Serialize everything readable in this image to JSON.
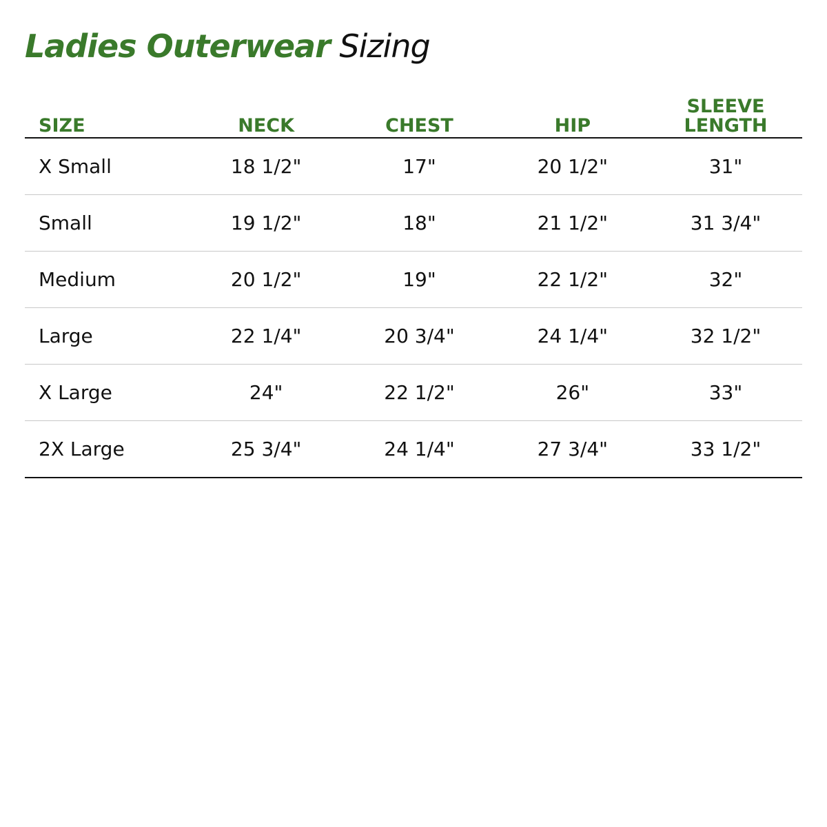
{
  "title": {
    "bold": "Ladies Outerwear",
    "rest": "Sizing"
  },
  "colors": {
    "accent": "#3a7a2b"
  },
  "headers": [
    "SIZE",
    "NECK",
    "CHEST",
    "HIP",
    "SLEEVE LENGTH"
  ],
  "rows": [
    [
      "X Small",
      "18 1/2\"",
      "17\"",
      "20 1/2\"",
      "31\""
    ],
    [
      "Small",
      "19 1/2\"",
      "18\"",
      "21 1/2\"",
      "31 3/4\""
    ],
    [
      "Medium",
      "20 1/2\"",
      "19\"",
      "22 1/2\"",
      "32\""
    ],
    [
      "Large",
      "22 1/4\"",
      "20 3/4\"",
      "24 1/4\"",
      "32 1/2\""
    ],
    [
      "X Large",
      "24\"",
      "22 1/2\"",
      "26\"",
      "33\""
    ],
    [
      "2X Large",
      "25 3/4\"",
      "24 1/4\"",
      "27 3/4\"",
      "33 1/2\""
    ]
  ]
}
